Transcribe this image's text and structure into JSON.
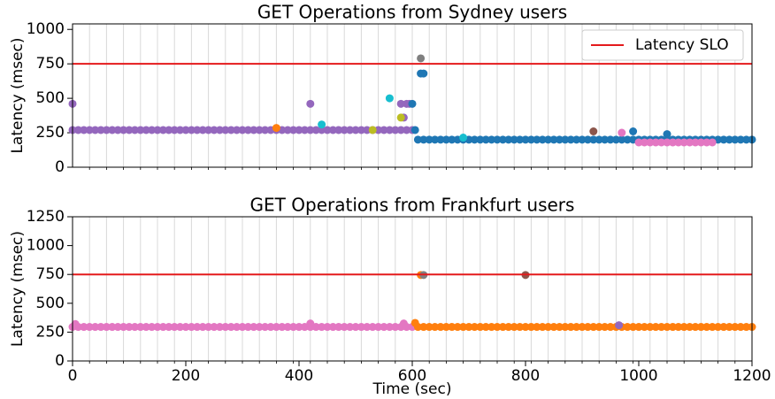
{
  "chart_data": [
    {
      "type": "scatter",
      "title": "GET Operations from Sydney users",
      "ylabel": "Latency (msec)",
      "xlim": [
        0,
        1200
      ],
      "ylim": [
        0,
        1040
      ],
      "yticks": [
        0,
        250,
        500,
        750,
        1000
      ],
      "xgrid": [
        30,
        60,
        90,
        120,
        150,
        180,
        210,
        240,
        270,
        300,
        330,
        360,
        390,
        420,
        450,
        480,
        510,
        540,
        570,
        600,
        630,
        660,
        690,
        720,
        750,
        780,
        810,
        840,
        870,
        900,
        930,
        960,
        990,
        1020,
        1050,
        1080,
        1110,
        1140,
        1170
      ],
      "hlines": [
        {
          "name": "Latency SLO",
          "value": 750,
          "color": "#e41a1c"
        }
      ],
      "legend": "upper right",
      "series": [
        {
          "color": "#9467bd",
          "x": [
            0,
            10,
            20,
            30,
            40,
            50,
            60,
            70,
            80,
            90,
            100,
            110,
            120,
            130,
            140,
            150,
            160,
            170,
            180,
            190,
            200,
            210,
            220,
            230,
            240,
            250,
            260,
            270,
            280,
            290,
            300,
            310,
            320,
            330,
            340,
            350,
            360,
            370,
            380,
            390,
            400,
            410,
            420,
            430,
            440,
            450,
            460,
            470,
            480,
            490,
            500,
            510,
            520,
            530,
            540,
            550,
            560,
            570,
            580,
            590,
            600
          ],
          "y": [
            270,
            270,
            270,
            270,
            270,
            270,
            270,
            270,
            270,
            270,
            270,
            270,
            270,
            270,
            270,
            270,
            270,
            270,
            270,
            270,
            270,
            270,
            270,
            270,
            270,
            270,
            270,
            270,
            270,
            270,
            270,
            270,
            270,
            270,
            270,
            270,
            270,
            270,
            270,
            270,
            270,
            270,
            270,
            270,
            270,
            270,
            270,
            270,
            270,
            270,
            270,
            270,
            270,
            270,
            270,
            270,
            270,
            270,
            270,
            270,
            270
          ]
        },
        {
          "color": "#1f77b4",
          "x": [
            610,
            620,
            630,
            640,
            650,
            660,
            670,
            680,
            690,
            700,
            710,
            720,
            730,
            740,
            750,
            760,
            770,
            780,
            790,
            800,
            810,
            820,
            830,
            840,
            850,
            860,
            870,
            880,
            890,
            900,
            910,
            920,
            930,
            940,
            950,
            960,
            970,
            980,
            990,
            1000,
            1010,
            1020,
            1030,
            1040,
            1050,
            1060,
            1070,
            1080,
            1090,
            1100,
            1110,
            1120,
            1130,
            1140,
            1150,
            1160,
            1170,
            1180,
            1190,
            1200
          ],
          "y": [
            200,
            200,
            200,
            200,
            200,
            200,
            200,
            200,
            200,
            200,
            200,
            200,
            200,
            200,
            200,
            200,
            200,
            200,
            200,
            200,
            200,
            200,
            200,
            200,
            200,
            200,
            200,
            200,
            200,
            200,
            200,
            200,
            200,
            200,
            200,
            200,
            200,
            200,
            200,
            200,
            200,
            200,
            200,
            200,
            200,
            200,
            200,
            200,
            200,
            200,
            200,
            200,
            200,
            200,
            200,
            200,
            200,
            200,
            200,
            200
          ]
        },
        {
          "color": "#e377c2",
          "x": [
            1000,
            1010,
            1020,
            1030,
            1040,
            1050,
            1060,
            1070,
            1080,
            1090,
            1100,
            1110,
            1120,
            1130
          ],
          "y": [
            180,
            180,
            180,
            180,
            180,
            180,
            180,
            180,
            180,
            180,
            180,
            180,
            180,
            180
          ]
        },
        {
          "color": "#9467bd",
          "x": [
            0,
            420,
            580,
            590,
            585,
            595
          ],
          "y": [
            460,
            460,
            460,
            460,
            360,
            460
          ]
        },
        {
          "color": "#17becf",
          "x": [
            440,
            560,
            690
          ],
          "y": [
            310,
            500,
            215
          ]
        },
        {
          "color": "#ff7f0e",
          "x": [
            360
          ],
          "y": [
            285
          ]
        },
        {
          "color": "#bcbd22",
          "x": [
            530,
            580
          ],
          "y": [
            270,
            360
          ]
        },
        {
          "color": "#1f77b4",
          "x": [
            600,
            605,
            615,
            620,
            990,
            1050
          ],
          "y": [
            460,
            270,
            680,
            680,
            260,
            240
          ]
        },
        {
          "color": "#7f7f7f",
          "x": [
            615
          ],
          "y": [
            790
          ]
        },
        {
          "color": "#8c564b",
          "x": [
            920
          ],
          "y": [
            260
          ]
        },
        {
          "color": "#e377c2",
          "x": [
            970
          ],
          "y": [
            250
          ]
        },
        {
          "color": "#c7c7c7",
          "x": [
            1150
          ],
          "y": [
            820
          ]
        }
      ]
    },
    {
      "type": "scatter",
      "title": "GET Operations from Frankfurt users",
      "ylabel": "Latency (msec)",
      "xlabel": "Time (sec)",
      "xlim": [
        0,
        1200
      ],
      "ylim": [
        0,
        1250
      ],
      "yticks": [
        0,
        250,
        500,
        750,
        1000,
        1250
      ],
      "xticks": [
        0,
        200,
        400,
        600,
        800,
        1000,
        1200
      ],
      "xgrid": [
        30,
        60,
        90,
        120,
        150,
        180,
        210,
        240,
        270,
        300,
        330,
        360,
        390,
        420,
        450,
        480,
        510,
        540,
        570,
        600,
        630,
        660,
        690,
        720,
        750,
        780,
        810,
        840,
        870,
        900,
        930,
        960,
        990,
        1020,
        1050,
        1080,
        1110,
        1140,
        1170
      ],
      "hlines": [
        {
          "value": 750,
          "color": "#e41a1c"
        }
      ],
      "series": [
        {
          "color": "#e377c2",
          "x": [
            0,
            10,
            20,
            30,
            40,
            50,
            60,
            70,
            80,
            90,
            100,
            110,
            120,
            130,
            140,
            150,
            160,
            170,
            180,
            190,
            200,
            210,
            220,
            230,
            240,
            250,
            260,
            270,
            280,
            290,
            300,
            310,
            320,
            330,
            340,
            350,
            360,
            370,
            380,
            390,
            400,
            410,
            420,
            430,
            440,
            450,
            460,
            470,
            480,
            490,
            500,
            510,
            520,
            530,
            540,
            550,
            560,
            570,
            580,
            590,
            600
          ],
          "y": [
            295,
            295,
            295,
            295,
            295,
            295,
            295,
            295,
            295,
            295,
            295,
            295,
            295,
            295,
            295,
            295,
            295,
            295,
            295,
            295,
            295,
            295,
            295,
            295,
            295,
            295,
            295,
            295,
            295,
            295,
            295,
            295,
            295,
            295,
            295,
            295,
            295,
            295,
            295,
            295,
            295,
            295,
            295,
            295,
            295,
            295,
            295,
            295,
            295,
            295,
            295,
            295,
            295,
            295,
            295,
            295,
            295,
            295,
            295,
            295,
            295
          ]
        },
        {
          "color": "#ff7f0e",
          "x": [
            610,
            620,
            630,
            640,
            650,
            660,
            670,
            680,
            690,
            700,
            710,
            720,
            730,
            740,
            750,
            760,
            770,
            780,
            790,
            800,
            810,
            820,
            830,
            840,
            850,
            860,
            870,
            880,
            890,
            900,
            910,
            920,
            930,
            940,
            950,
            960,
            970,
            980,
            990,
            1000,
            1010,
            1020,
            1030,
            1040,
            1050,
            1060,
            1070,
            1080,
            1090,
            1100,
            1110,
            1120,
            1130,
            1140,
            1150,
            1160,
            1170,
            1180,
            1190,
            1200
          ],
          "y": [
            295,
            295,
            295,
            295,
            295,
            295,
            295,
            295,
            295,
            295,
            295,
            295,
            295,
            295,
            295,
            295,
            295,
            295,
            295,
            295,
            295,
            295,
            295,
            295,
            295,
            295,
            295,
            295,
            295,
            295,
            295,
            295,
            295,
            295,
            295,
            295,
            295,
            295,
            295,
            295,
            295,
            295,
            295,
            295,
            295,
            295,
            295,
            295,
            295,
            295,
            295,
            295,
            295,
            295,
            295,
            295,
            295,
            295,
            295,
            295
          ]
        },
        {
          "color": "#e377c2",
          "x": [
            5,
            420,
            585
          ],
          "y": [
            320,
            325,
            325
          ]
        },
        {
          "color": "#ff7f0e",
          "x": [
            605,
            615
          ],
          "y": [
            330,
            745
          ]
        },
        {
          "color": "#7f7f7f",
          "x": [
            620
          ],
          "y": [
            745
          ]
        },
        {
          "color": "#8c564b",
          "x": [
            800
          ],
          "y": [
            745
          ]
        },
        {
          "color": "#9467bd",
          "x": [
            965
          ],
          "y": [
            310
          ]
        }
      ]
    }
  ]
}
